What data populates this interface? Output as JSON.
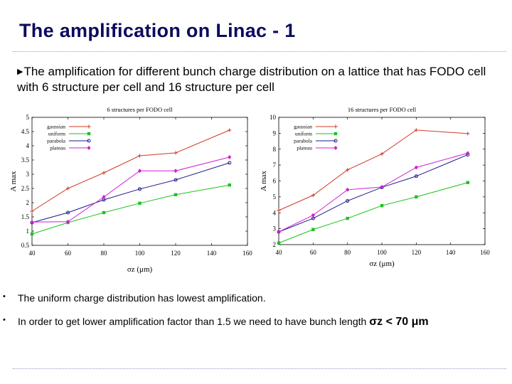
{
  "slide": {
    "title": "The amplification on Linac - 1",
    "intro": "The amplification for different bunch charge distribution on a lattice that has FODO cell with 6 structure per cell and 16 structure per cell",
    "bullets": [
      {
        "marker": "•",
        "text": "The uniform charge distribution has lowest amplification."
      },
      {
        "marker": "•",
        "text": "In order to get lower amplification factor than 1.5 we need to have bunch length ",
        "symbol": "σz < 70 μm"
      }
    ]
  },
  "chart_data": [
    {
      "type": "line",
      "title": "6 structures per FODO cell",
      "xlabel": "σz (μm)",
      "ylabel": "A max",
      "xlim": [
        40,
        160
      ],
      "ylim": [
        0.5,
        5
      ],
      "xticks": [
        40,
        60,
        80,
        100,
        120,
        140,
        160
      ],
      "yticks": [
        0.5,
        1,
        1.5,
        2,
        2.5,
        3,
        3.5,
        4,
        4.5,
        5
      ],
      "x": [
        40,
        60,
        80,
        100,
        120,
        150
      ],
      "legend_position": "top-left",
      "series": [
        {
          "name": "gaussian",
          "color": "#d03a2a",
          "marker": "plus",
          "values": [
            1.7,
            2.5,
            3.05,
            3.65,
            3.75,
            4.55
          ]
        },
        {
          "name": "uniform",
          "color": "#1bc41b",
          "marker": "square",
          "values": [
            0.9,
            1.3,
            1.65,
            1.98,
            2.28,
            2.62
          ]
        },
        {
          "name": "parabola",
          "color": "#1a1a8c",
          "marker": "circle",
          "values": [
            1.3,
            1.65,
            2.1,
            2.48,
            2.8,
            3.4
          ]
        },
        {
          "name": "plateau",
          "color": "#d21fd2",
          "marker": "diamond",
          "values": [
            1.32,
            1.33,
            2.2,
            3.12,
            3.12,
            3.6
          ]
        }
      ]
    },
    {
      "type": "line",
      "title": "16 structures per FODO cell",
      "xlabel": "σz (μm)",
      "ylabel": "A max",
      "xlim": [
        40,
        160
      ],
      "ylim": [
        2,
        10
      ],
      "xticks": [
        40,
        60,
        80,
        100,
        120,
        140,
        160
      ],
      "yticks": [
        2,
        3,
        4,
        5,
        6,
        7,
        8,
        9,
        10
      ],
      "x": [
        40,
        60,
        80,
        100,
        120,
        150
      ],
      "legend_position": "top-left",
      "series": [
        {
          "name": "gaussian",
          "color": "#d03a2a",
          "marker": "plus",
          "values": [
            4.15,
            5.1,
            6.7,
            7.7,
            9.2,
            8.98
          ]
        },
        {
          "name": "uniform",
          "color": "#1bc41b",
          "marker": "square",
          "values": [
            2.1,
            2.95,
            3.65,
            4.45,
            5.0,
            5.9
          ]
        },
        {
          "name": "parabola",
          "color": "#1a1a8c",
          "marker": "circle",
          "values": [
            2.8,
            3.65,
            4.75,
            5.6,
            6.3,
            7.65
          ]
        },
        {
          "name": "plateau",
          "color": "#d21fd2",
          "marker": "diamond",
          "values": [
            2.8,
            3.85,
            5.45,
            5.62,
            6.85,
            7.75
          ]
        }
      ]
    }
  ]
}
